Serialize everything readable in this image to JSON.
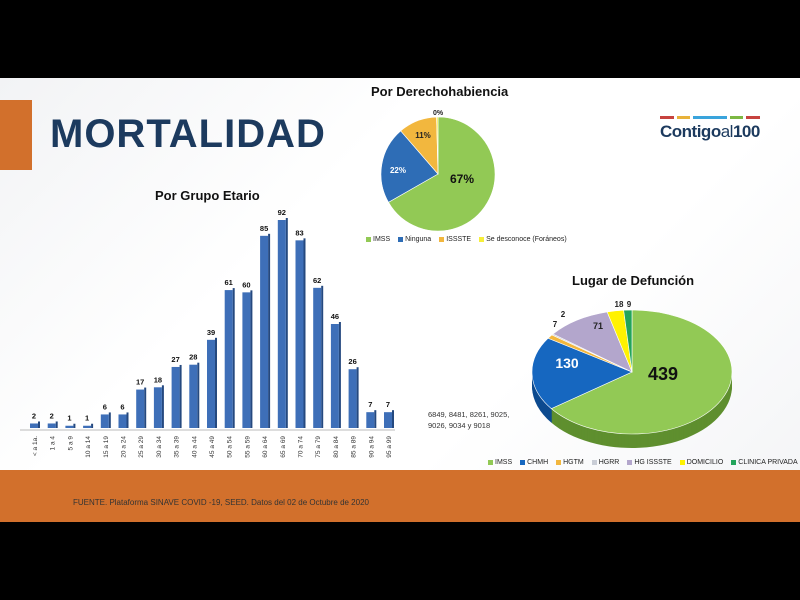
{
  "title": "MORTALIDAD",
  "logo": {
    "main": "Contigo",
    "al": "al",
    "num": "100"
  },
  "chart_data": [
    {
      "type": "bar",
      "title": "Por Grupo Etario",
      "categories": [
        "< a 1a.",
        "1 a 4",
        "5 a 9",
        "10 a 14",
        "15 a 19",
        "20 a 24",
        "25 a 29",
        "30 a 34",
        "35 a 39",
        "40 a 44",
        "45 a 49",
        "50 a 54",
        "55 a 59",
        "60 a 64",
        "65 a 69",
        "70 a 74",
        "75 a 79",
        "80 a 84",
        "85 a 89",
        "90 a 94",
        "95 a 99"
      ],
      "values": [
        2,
        2,
        1,
        1,
        6,
        6,
        17,
        18,
        27,
        28,
        39,
        61,
        60,
        85,
        92,
        83,
        62,
        46,
        26,
        7,
        7
      ],
      "color": "#3e6fb8",
      "ylim": [
        0,
        92
      ]
    },
    {
      "type": "pie",
      "title": "Por Derechohabiencia",
      "labels": [
        "IMSS",
        "Ninguna",
        "ISSSTE",
        "Se desconoce (Foráneos)"
      ],
      "values": [
        67,
        22,
        11,
        0.4
      ],
      "display": [
        "67%",
        "22%",
        "11%",
        "0%"
      ],
      "colors": [
        "#92c955",
        "#2e6db6",
        "#f2b73e",
        "#f7ef3a"
      ]
    },
    {
      "type": "pie",
      "title": "Lugar de Defunción",
      "labels": [
        "IMSS",
        "CHMH",
        "HGTM",
        "HGRR",
        "HG ISSSTE",
        "DOMICILIO",
        "CLINICA PRIVADA"
      ],
      "values": [
        439,
        130,
        7,
        2,
        71,
        18,
        9
      ],
      "colors": [
        "#92c955",
        "#1667c0",
        "#f2b73e",
        "#c9cdd6",
        "#b3a6cc",
        "#fff200",
        "#23a45a"
      ]
    }
  ],
  "note": "6849, 8481, 8261, 9025, 9026, 9034 y 9018",
  "source": "FUENTE. Plataforma SINAVE COVID -19, SEED. Datos del 02 de Octubre de 2020"
}
